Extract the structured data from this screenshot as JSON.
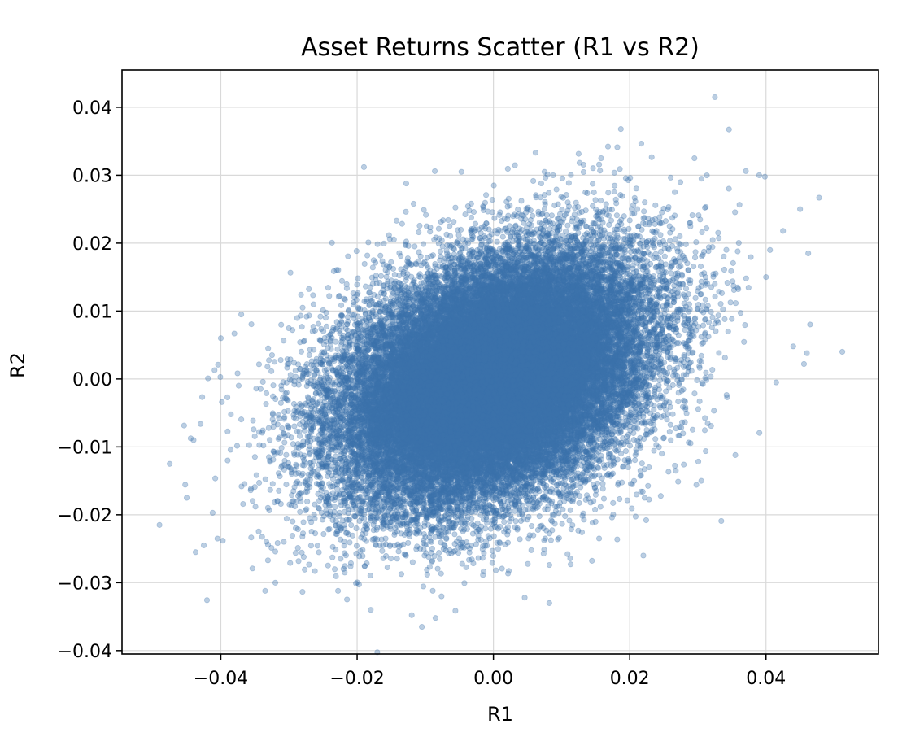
{
  "chart_data": {
    "type": "scatter",
    "title": "Asset Returns Scatter (R1 vs R2)",
    "xlabel": "R1",
    "ylabel": "R2",
    "xlim": [
      -0.0545,
      0.0565
    ],
    "ylim": [
      -0.0405,
      0.0455
    ],
    "xticks": [
      -0.04,
      -0.02,
      0.0,
      0.02,
      0.04
    ],
    "xtick_labels": [
      "−0.04",
      "−0.02",
      "0.00",
      "0.02",
      "0.04"
    ],
    "yticks": [
      -0.04,
      -0.03,
      -0.02,
      -0.01,
      0.0,
      0.01,
      0.02,
      0.03,
      0.04
    ],
    "ytick_labels": [
      "−0.04",
      "−0.03",
      "−0.02",
      "−0.01",
      "0.00",
      "0.01",
      "0.02",
      "0.03",
      "0.04"
    ],
    "grid": true,
    "point_color": "#3b73ad",
    "point_alpha": 0.35,
    "series": [
      {
        "distribution": {
          "n_points": 40000,
          "mean_x": 0.0,
          "mean_y": 0.0,
          "std_x": 0.011,
          "std_y": 0.009,
          "correlation": 0.35
        },
        "points": [
          [
            -0.049,
            -0.0215
          ],
          [
            -0.0475,
            -0.0125
          ],
          [
            -0.045,
            -0.0175
          ],
          [
            -0.0437,
            -0.0255
          ],
          [
            -0.0425,
            -0.0245
          ],
          [
            -0.0405,
            -0.0235
          ],
          [
            -0.04,
            0.006
          ],
          [
            0.0325,
            0.0415
          ],
          [
            0.0187,
            0.0368
          ],
          [
            0.0512,
            0.004
          ],
          [
            0.046,
            0.0038
          ],
          [
            0.0462,
            0.0185
          ],
          [
            0.045,
            0.025
          ],
          [
            -0.0105,
            -0.0365
          ],
          [
            -0.018,
            -0.034
          ],
          [
            0.0082,
            -0.033
          ],
          [
            -0.0085,
            -0.0352
          ],
          [
            0.022,
            -0.026
          ],
          [
            0.0355,
            -0.0112
          ],
          [
            -0.0335,
            -0.0312
          ],
          [
            -0.0228,
            -0.0312
          ],
          [
            0.0295,
            0.0325
          ],
          [
            0.0158,
            0.0325
          ],
          [
            -0.019,
            0.0312
          ],
          [
            0.0075,
            0.0305
          ],
          [
            0.039,
            0.03
          ],
          [
            0.04,
            0.015
          ],
          [
            0.0425,
            0.0218
          ],
          [
            -0.028,
            0.0105
          ],
          [
            -0.037,
            0.0095
          ],
          [
            -0.044,
            -0.009
          ],
          [
            -0.039,
            -0.012
          ],
          [
            0.044,
            0.0048
          ],
          [
            0.0415,
            -0.0005
          ],
          [
            -0.032,
            -0.03
          ],
          [
            0.0305,
            -0.015
          ]
        ]
      }
    ]
  }
}
